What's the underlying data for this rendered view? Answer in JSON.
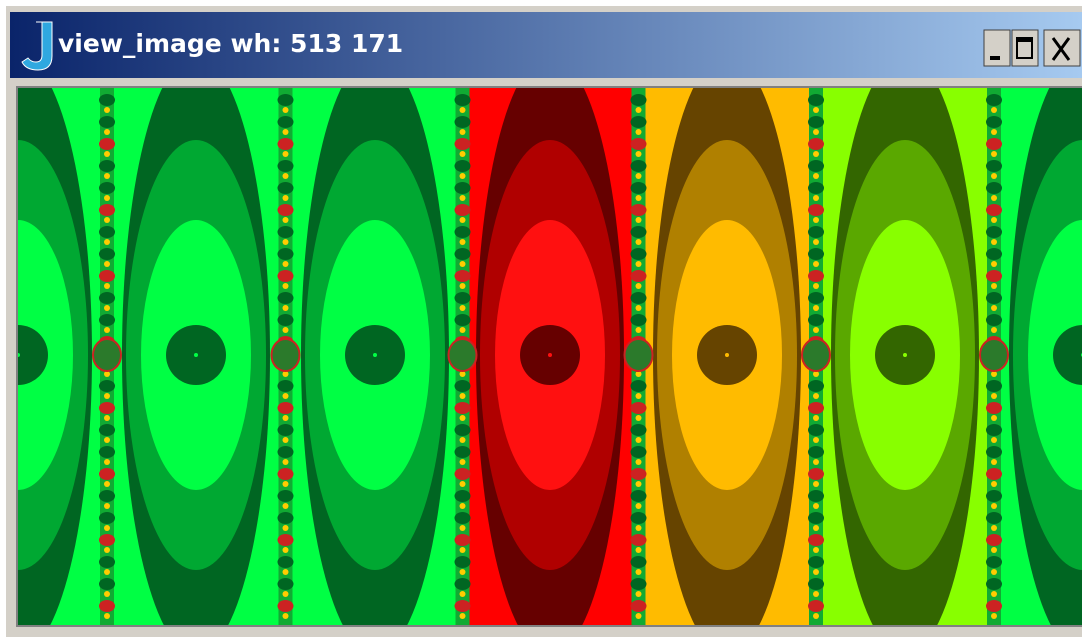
{
  "window": {
    "title": "view_image wh: 513 171"
  }
}
